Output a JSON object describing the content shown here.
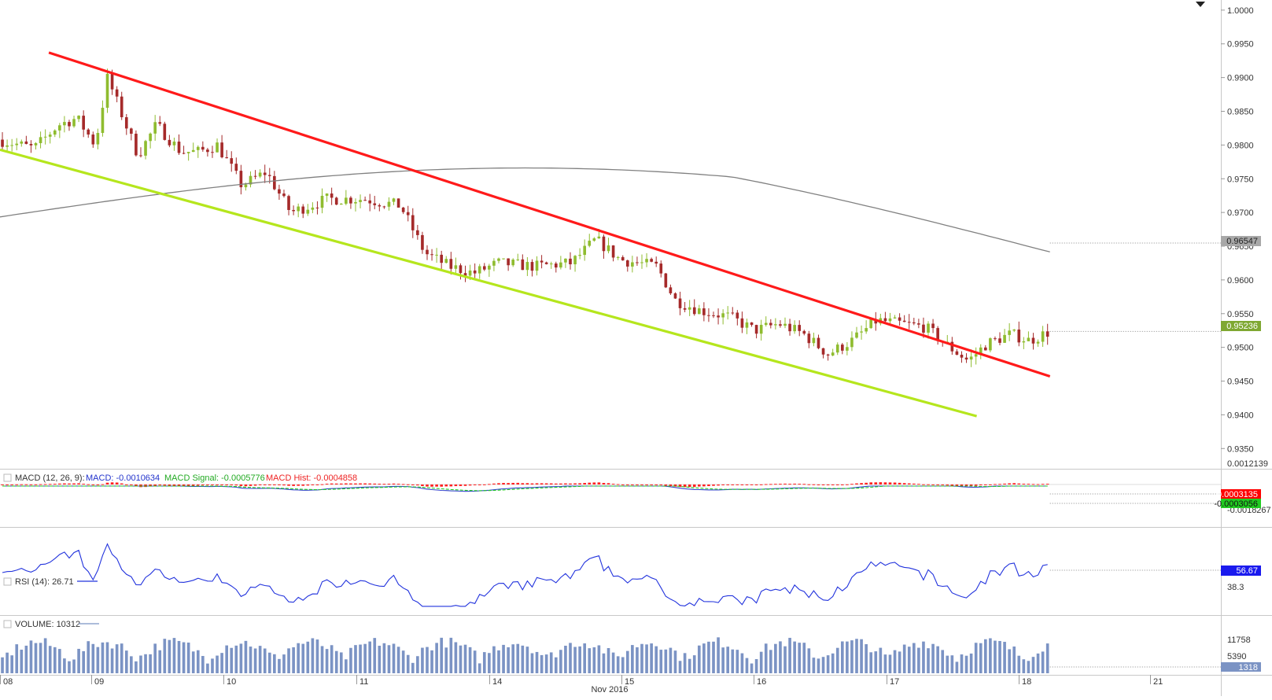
{
  "chart_data": {
    "type": "candlestick",
    "price_panel": {
      "y_ticks": [
        "1.0000",
        "0.9950",
        "0.9900",
        "0.9850",
        "0.9800",
        "0.9750",
        "0.9700",
        "0.9650",
        "0.9600",
        "0.9550",
        "0.9500",
        "0.9450",
        "0.9400",
        "0.9350"
      ],
      "ylim": [
        0.932,
        1.0015
      ],
      "last_price_label": "0.95236",
      "last_price": 0.95236,
      "ma_label": "0.96547",
      "ma_value": 0.96547,
      "trendlines": [
        {
          "name": "resistance",
          "color": "#ff1a1a",
          "from": [
            0.04,
            0.9937
          ],
          "to": [
            0.86,
            0.9457
          ]
        },
        {
          "name": "support",
          "color": "#b5e61d",
          "from": [
            0.0,
            0.9793
          ],
          "to": [
            0.8,
            0.9398
          ]
        }
      ],
      "colors": {
        "up": "#8fbc2f",
        "down": "#a52a2a",
        "ma": "#808080",
        "last_price_bg": "#7fa832",
        "ma_bg": "#a8a8a8"
      }
    },
    "macd_panel": {
      "legend_title": "MACD (12, 26, 9):",
      "legend_macd": "MACD: -0.0010634",
      "legend_signal": "MACD Signal: -0.0005776",
      "legend_hist": "MACD Hist: -0.0004858",
      "y_ticks": [
        "0.0012139",
        "-0.0018267"
      ],
      "hist_label": "0.0003135",
      "signal_label": "-0.0003056",
      "colors": {
        "macd": "#3344cc",
        "signal": "#22cc22",
        "hist": "#ff2222",
        "hist_label_bg": "#ff0000",
        "signal_label_bg": "#22cc22"
      }
    },
    "rsi_panel": {
      "legend": "RSI (14): 26.71",
      "y_ticks": [
        "38.3"
      ],
      "value_label": "56.67",
      "colors": {
        "line": "#2233dd",
        "label_bg": "#1a1aee"
      }
    },
    "volume_panel": {
      "legend": "VOLUME: 10312",
      "y_ticks": [
        "11758",
        "5390"
      ],
      "value_label": "1318",
      "colors": {
        "bar": "#7b93c4",
        "label_bg": "#7b93c4"
      }
    },
    "x_axis": {
      "labels": [
        "08",
        "09",
        "10",
        "11",
        "14",
        "15",
        "16",
        "17",
        "18",
        "21"
      ],
      "month_label": "Nov 2016"
    }
  }
}
